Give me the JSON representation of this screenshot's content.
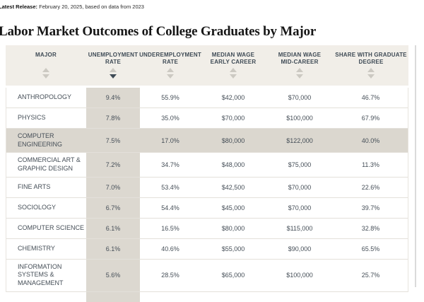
{
  "release": {
    "label": "Latest Release:",
    "text": " February 20, 2025, based on data from 2023"
  },
  "title": "Labor Market Outcomes of College Graduates by Major",
  "colors": {
    "header_bg": "#f1eee8",
    "sorted_column_bg": "#dcd8d0",
    "highlight_row_bg": "#dbd7cf",
    "accent_dark": "#3e4a55",
    "row_border": "#e3e0da"
  },
  "table": {
    "columns": [
      {
        "label": "MAJOR",
        "sort": "none"
      },
      {
        "label": "UNEMPLOYMENT\nRATE",
        "sort": "desc"
      },
      {
        "label": "UNDEREMPLOYMENT\nRATE",
        "sort": "none"
      },
      {
        "label": "MEDIAN WAGE\nEARLY CAREER",
        "sort": "none"
      },
      {
        "label": "MEDIAN WAGE\nMID-CAREER",
        "sort": "none"
      },
      {
        "label": "SHARE WITH GRADUATE\nDEGREE",
        "sort": "none"
      }
    ],
    "rows": [
      {
        "major": "ANTHROPOLOGY",
        "unemployment": "9.4%",
        "underemployment": "55.9%",
        "wage_early": "$42,000",
        "wage_mid": "$70,000",
        "grad_share": "46.7%",
        "highlighted": false
      },
      {
        "major": "PHYSICS",
        "unemployment": "7.8%",
        "underemployment": "35.0%",
        "wage_early": "$70,000",
        "wage_mid": "$100,000",
        "grad_share": "67.9%",
        "highlighted": false
      },
      {
        "major": "COMPUTER ENGINEERING",
        "unemployment": "7.5%",
        "underemployment": "17.0%",
        "wage_early": "$80,000",
        "wage_mid": "$122,000",
        "grad_share": "40.0%",
        "highlighted": true
      },
      {
        "major": "COMMERCIAL ART &\nGRAPHIC DESIGN",
        "unemployment": "7.2%",
        "underemployment": "34.7%",
        "wage_early": "$48,000",
        "wage_mid": "$75,000",
        "grad_share": "11.3%",
        "highlighted": false
      },
      {
        "major": "FINE ARTS",
        "unemployment": "7.0%",
        "underemployment": "53.4%",
        "wage_early": "$42,500",
        "wage_mid": "$70,000",
        "grad_share": "22.6%",
        "highlighted": false
      },
      {
        "major": "SOCIOLOGY",
        "unemployment": "6.7%",
        "underemployment": "54.4%",
        "wage_early": "$45,000",
        "wage_mid": "$70,000",
        "grad_share": "39.7%",
        "highlighted": false
      },
      {
        "major": "COMPUTER SCIENCE",
        "unemployment": "6.1%",
        "underemployment": "16.5%",
        "wage_early": "$80,000",
        "wage_mid": "$115,000",
        "grad_share": "32.8%",
        "highlighted": false
      },
      {
        "major": "CHEMISTRY",
        "unemployment": "6.1%",
        "underemployment": "40.6%",
        "wage_early": "$55,000",
        "wage_mid": "$90,000",
        "grad_share": "65.5%",
        "highlighted": false
      },
      {
        "major": "INFORMATION SYSTEMS &\nMANAGEMENT",
        "unemployment": "5.6%",
        "underemployment": "28.5%",
        "wage_early": "$65,000",
        "wage_mid": "$100,000",
        "grad_share": "25.7%",
        "highlighted": false
      }
    ]
  },
  "chart_data": {
    "type": "table",
    "title": "Labor Market Outcomes of College Graduates by Major",
    "release_note": "Latest Release: February 20, 2025, based on data from 2023",
    "columns": [
      "Major",
      "Unemployment Rate",
      "Underemployment Rate",
      "Median Wage Early Career",
      "Median Wage Mid-Career",
      "Share with Graduate Degree"
    ],
    "rows": [
      [
        "Anthropology",
        9.4,
        55.9,
        42000,
        70000,
        46.7
      ],
      [
        "Physics",
        7.8,
        35.0,
        70000,
        100000,
        67.9
      ],
      [
        "Computer Engineering",
        7.5,
        17.0,
        80000,
        122000,
        40.0
      ],
      [
        "Commercial Art & Graphic Design",
        7.2,
        34.7,
        48000,
        75000,
        11.3
      ],
      [
        "Fine Arts",
        7.0,
        53.4,
        42500,
        70000,
        22.6
      ],
      [
        "Sociology",
        6.7,
        54.4,
        45000,
        70000,
        39.7
      ],
      [
        "Computer Science",
        6.1,
        16.5,
        80000,
        115000,
        32.8
      ],
      [
        "Chemistry",
        6.1,
        40.6,
        55000,
        90000,
        65.5
      ],
      [
        "Information Systems & Management",
        5.6,
        28.5,
        65000,
        100000,
        25.7
      ]
    ],
    "units": {
      "Unemployment Rate": "%",
      "Underemployment Rate": "%",
      "Median Wage Early Career": "USD",
      "Median Wage Mid-Career": "USD",
      "Share with Graduate Degree": "%"
    },
    "sorted_by": "Unemployment Rate",
    "sort_order": "descending",
    "highlighted_row": "Computer Engineering"
  }
}
